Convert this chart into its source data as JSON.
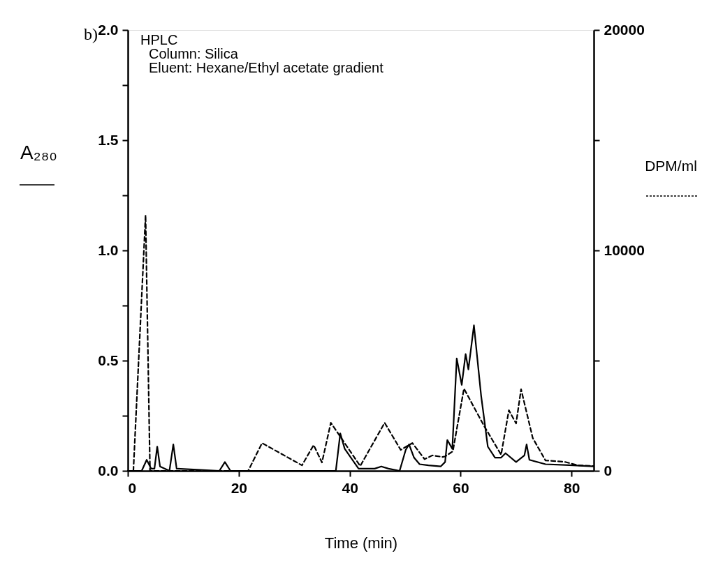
{
  "chart_data": {
    "type": "line",
    "xlabel": "Time (min)",
    "ylabel": "A₂₈₀",
    "y2label": "DPM/ml",
    "annotations": [
      "b)",
      "HPLC",
      "Column: Silica",
      "Eluent:   Hexane/Ethyl acetate gradient"
    ],
    "xlim": [
      0,
      84
    ],
    "xticks": [
      0,
      20,
      40,
      60,
      80
    ],
    "ylim": [
      0,
      2.0
    ],
    "yticks": [
      {
        "value": 0,
        "label": "0.0"
      },
      {
        "value": 0.25,
        "label": null
      },
      {
        "value": 0.5,
        "label": "0.5"
      },
      {
        "value": 0.75,
        "label": null
      },
      {
        "value": 1.0,
        "label": "1.0"
      },
      {
        "value": 1.25,
        "label": null
      },
      {
        "value": 1.5,
        "label": "1.5"
      },
      {
        "value": 1.75,
        "label": null
      },
      {
        "value": 2.0,
        "label": "2.0"
      }
    ],
    "y2lim": [
      0,
      20000
    ],
    "y2ticks": [
      0,
      {
        "value": 5000,
        "label": null
      },
      10000,
      {
        "value": 15000,
        "label": null
      },
      20000
    ],
    "grid": false,
    "marker": "none",
    "series": [
      {
        "color": "#000000",
        "line_style": "solid",
        "x": [
          0,
          2.5,
          3.4,
          4.2,
          4.8,
          5.3,
          5.8,
          7.5,
          8.2,
          8.8,
          16.5,
          17.5,
          18.5,
          37.5,
          38.3,
          39.1,
          41.6,
          44.5,
          45.7,
          47,
          49,
          50.1,
          50.7,
          51.6,
          52.6,
          54.2,
          56.4,
          57.2,
          57.6,
          58.5,
          59.3,
          60.2,
          60.9,
          61.4,
          62.4,
          63.7,
          64.9,
          66.2,
          67.3,
          68.1,
          70,
          71.5,
          71.9,
          72.4,
          75.3,
          80.3,
          84
        ],
        "values": [
          0,
          0,
          0.05,
          0.01,
          0.01,
          0.11,
          0.02,
          0,
          0.12,
          0.01,
          0,
          0.04,
          0,
          0,
          0.17,
          0.1,
          0.01,
          0.01,
          0.02,
          0.01,
          0,
          0.095,
          0.12,
          0.06,
          0.03,
          0.025,
          0.02,
          0.04,
          0.14,
          0.1,
          0.51,
          0.39,
          0.53,
          0.46,
          0.66,
          0.34,
          0.11,
          0.06,
          0.06,
          0.08,
          0.04,
          0.07,
          0.12,
          0.05,
          0.03,
          0.025,
          0.02
        ]
      },
      {
        "color": "#000000",
        "line_style": "dashed",
        "axis": "y2",
        "x": [
          1,
          3.2,
          4,
          21.7,
          24.2,
          31.4,
          33.5,
          35,
          36.6,
          41.9,
          46.3,
          49.2,
          51.3,
          53.5,
          54.9,
          56.7,
          57.2,
          58.6,
          60.6,
          64.2,
          67.3,
          68.7,
          70,
          70.9,
          73,
          75.3,
          78.7,
          81.2,
          84
        ],
        "values": [
          0,
          11600,
          0,
          0,
          1260,
          250,
          1170,
          380,
          2180,
          220,
          2180,
          950,
          1260,
          530,
          700,
          630,
          650,
          890,
          3730,
          2050,
          730,
          2750,
          2150,
          3700,
          1490,
          470,
          410,
          250,
          220
        ]
      }
    ]
  }
}
